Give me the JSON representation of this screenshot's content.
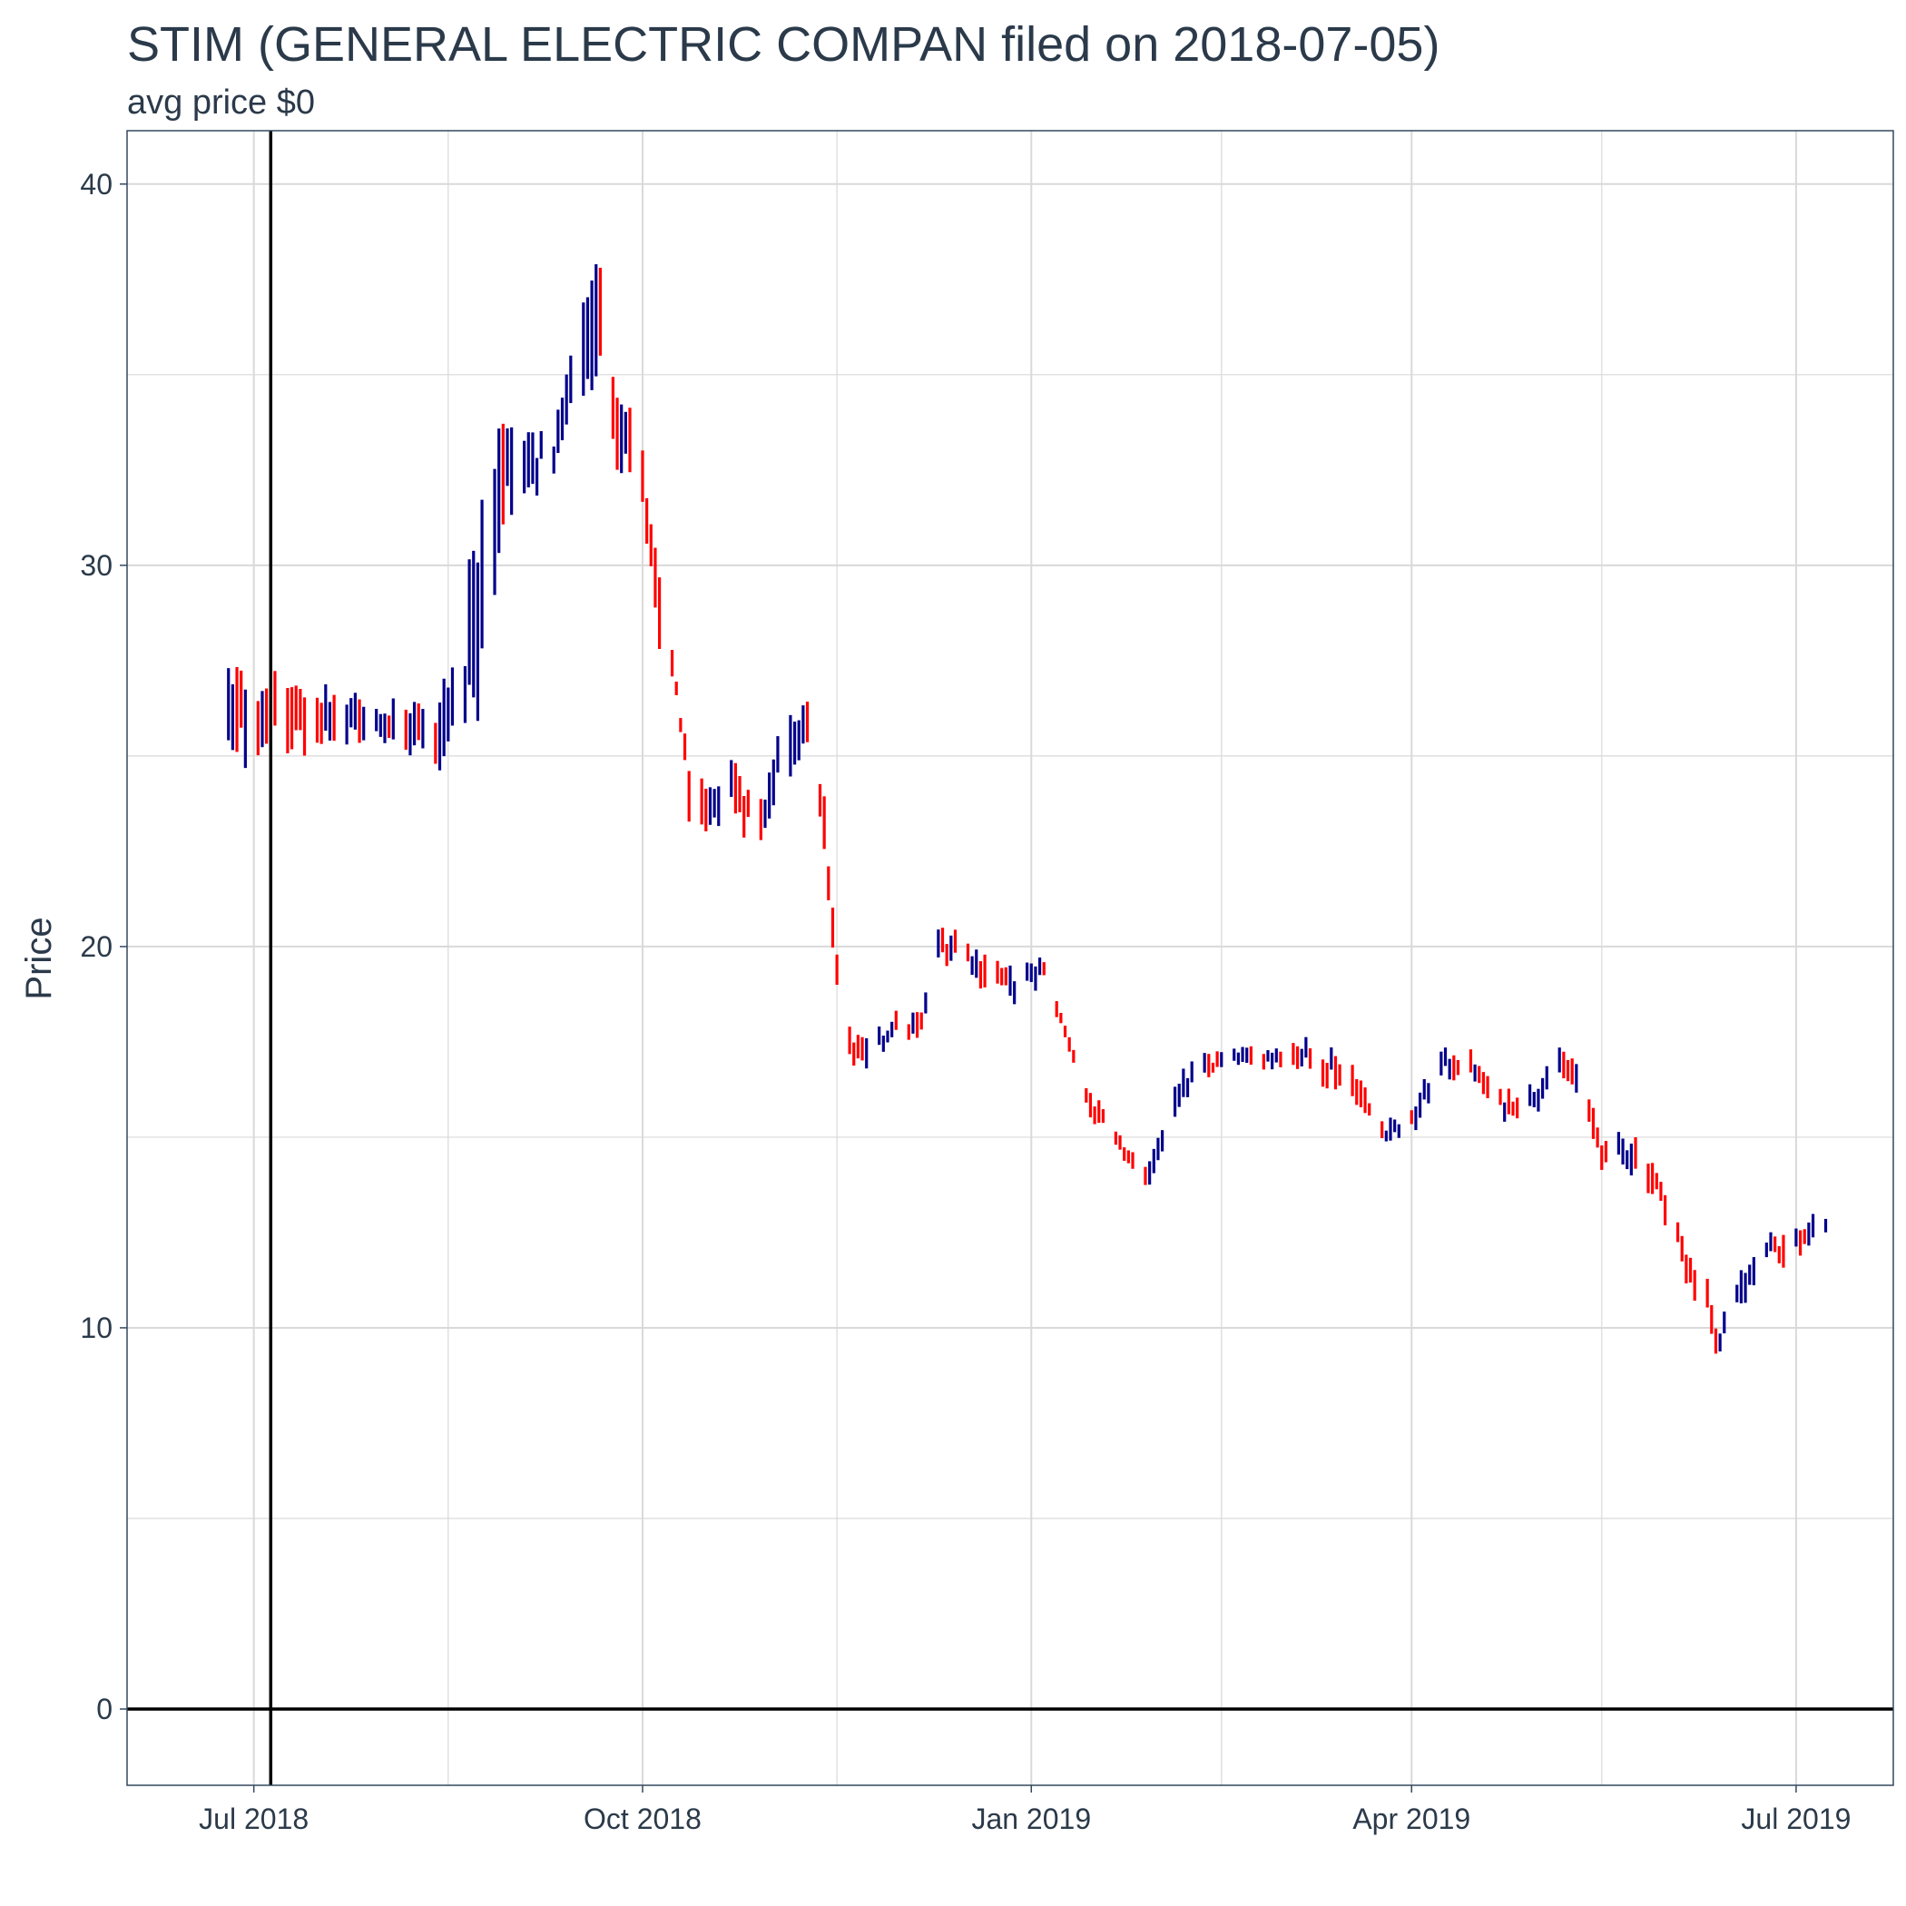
{
  "chart_data": {
    "type": "bar",
    "subtype": "ohlc",
    "title": "STIM (GENERAL ELECTRIC COMPAN filed on 2018-07-05)",
    "subtitle": "avg price $0",
    "xlabel": "",
    "ylabel": "Price",
    "ylim": [
      -2,
      41.4
    ],
    "xlim": [
      "2018-06-01",
      "2019-07-24"
    ],
    "yticks": [
      0,
      10,
      20,
      30,
      40
    ],
    "ygrid_minor": [
      5,
      15,
      25,
      35
    ],
    "xticks": [
      {
        "date": "2018-07-01",
        "label": "Jul 2018"
      },
      {
        "date": "2018-10-01",
        "label": "Oct 2018"
      },
      {
        "date": "2019-01-01",
        "label": "Jan 2019"
      },
      {
        "date": "2019-04-01",
        "label": "Apr 2019"
      },
      {
        "date": "2019-07-01",
        "label": "Jul 2019"
      }
    ],
    "xgrid_minor": [
      "2018-08-16",
      "2018-11-16",
      "2019-02-15",
      "2019-05-16"
    ],
    "grid": true,
    "reference_lines": {
      "vertical_date": "2018-07-05",
      "horizontal_value": 0
    },
    "colors": {
      "up": "#00008b",
      "down": "#ff0000",
      "reference": "#000000",
      "grid": "#d9d9d9"
    },
    "series": [
      {
        "name": "",
        "anchors": [
          [
            "2018-06-25",
            24.5,
            27.5
          ],
          [
            "2018-07-02",
            25.0,
            27.0
          ],
          [
            "2018-07-16",
            25.0,
            27.0
          ],
          [
            "2018-07-30",
            25.5,
            26.5
          ],
          [
            "2018-08-13",
            24.5,
            26.5
          ],
          [
            "2018-08-20",
            25.5,
            29.0
          ],
          [
            "2018-08-24",
            27.0,
            33.5
          ],
          [
            "2018-08-28",
            30.0,
            34.5
          ],
          [
            "2018-09-04",
            31.5,
            33.5
          ],
          [
            "2018-09-10",
            32.5,
            33.5
          ],
          [
            "2018-09-17",
            34.5,
            37.5
          ],
          [
            "2018-09-20",
            35.0,
            38.5
          ],
          [
            "2018-09-24",
            32.0,
            35.5
          ],
          [
            "2018-09-27",
            32.5,
            35.0
          ],
          [
            "2018-10-01",
            31.0,
            33.0
          ],
          [
            "2018-10-05",
            27.5,
            30.0
          ],
          [
            "2018-10-09",
            26.5,
            27.0
          ],
          [
            "2018-10-12",
            23.5,
            25.0
          ],
          [
            "2018-10-16",
            22.5,
            24.0
          ],
          [
            "2018-10-22",
            23.5,
            25.0
          ],
          [
            "2018-10-29",
            22.5,
            24.0
          ],
          [
            "2018-11-02",
            24.0,
            26.0
          ],
          [
            "2018-11-08",
            25.0,
            27.0
          ],
          [
            "2018-11-13",
            22.0,
            24.0
          ],
          [
            "2018-11-16",
            18.5,
            20.0
          ],
          [
            "2018-11-19",
            17.0,
            18.0
          ],
          [
            "2018-11-23",
            16.5,
            17.5
          ],
          [
            "2018-11-29",
            17.5,
            18.2
          ],
          [
            "2018-12-06",
            17.5,
            18.3
          ],
          [
            "2018-12-10",
            19.5,
            20.5
          ],
          [
            "2018-12-14",
            19.5,
            20.5
          ],
          [
            "2018-12-20",
            19.0,
            20.0
          ],
          [
            "2018-12-27",
            18.5,
            19.5
          ],
          [
            "2019-01-04",
            19.0,
            19.7
          ],
          [
            "2019-01-09",
            17.5,
            18.0
          ],
          [
            "2019-01-15",
            15.5,
            16.2
          ],
          [
            "2019-01-22",
            14.5,
            15.0
          ],
          [
            "2019-01-28",
            13.5,
            14.2
          ],
          [
            "2019-02-04",
            15.5,
            16.5
          ],
          [
            "2019-02-11",
            16.5,
            17.2
          ],
          [
            "2019-02-19",
            16.8,
            17.3
          ],
          [
            "2019-03-04",
            16.8,
            17.6
          ],
          [
            "2019-03-11",
            16.5,
            17.6
          ],
          [
            "2019-03-18",
            16.0,
            17.0
          ],
          [
            "2019-03-25",
            14.8,
            15.5
          ],
          [
            "2019-04-01",
            15.0,
            15.8
          ],
          [
            "2019-04-08",
            16.5,
            17.4
          ],
          [
            "2019-04-15",
            16.5,
            17.2
          ],
          [
            "2019-04-22",
            15.5,
            16.3
          ],
          [
            "2019-04-29",
            15.5,
            16.4
          ],
          [
            "2019-05-06",
            16.5,
            17.3
          ],
          [
            "2019-05-10",
            16.0,
            17.0
          ],
          [
            "2019-05-13",
            15.0,
            16.0
          ],
          [
            "2019-05-17",
            14.0,
            15.0
          ],
          [
            "2019-05-23",
            14.0,
            15.2
          ],
          [
            "2019-05-28",
            13.5,
            14.5
          ],
          [
            "2019-06-03",
            12.0,
            13.0
          ],
          [
            "2019-06-05",
            11.0,
            12.0
          ],
          [
            "2019-06-10",
            10.5,
            11.5
          ],
          [
            "2019-06-12",
            9.0,
            10.0
          ],
          [
            "2019-06-14",
            9.5,
            10.5
          ],
          [
            "2019-06-18",
            10.5,
            11.5
          ],
          [
            "2019-06-21",
            11.0,
            12.0
          ],
          [
            "2019-06-25",
            12.0,
            12.8
          ],
          [
            "2019-06-28",
            11.5,
            12.5
          ],
          [
            "2019-07-03",
            12.0,
            12.8
          ],
          [
            "2019-07-08",
            12.5,
            13.0
          ]
        ]
      }
    ]
  }
}
